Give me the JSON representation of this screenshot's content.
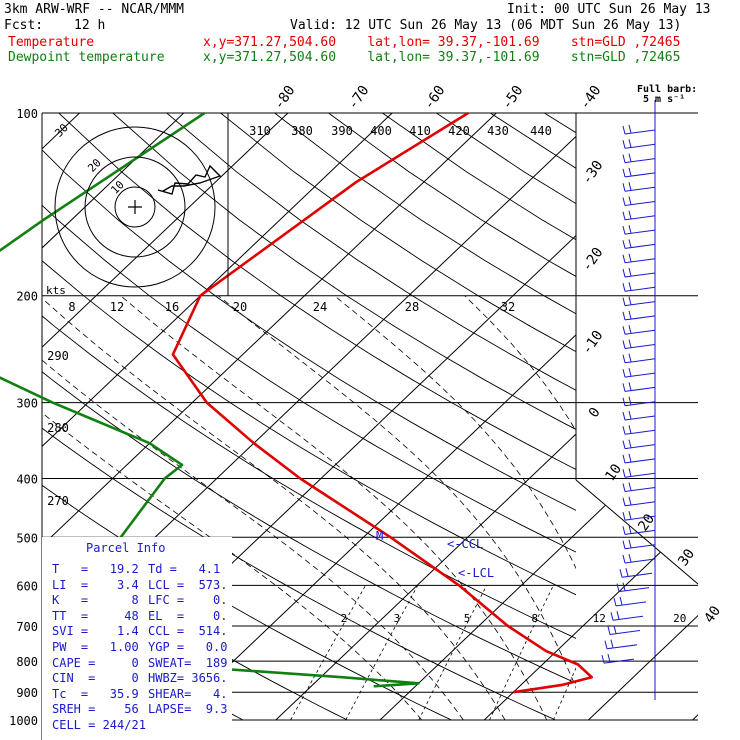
{
  "header": {
    "model": "3km ARW-WRF -- NCAR/MMM",
    "init": "Init: 00 UTC Sun 26 May 13",
    "fcst_label": "Fcst:",
    "fcst_value": "12 h",
    "valid": "Valid: 12 UTC Sun 26 May 13 (06 MDT Sun 26 May 13)",
    "temp_label": "Temperature",
    "dew_label": "Dewpoint temperature",
    "loc_temp": "x,y=371.27,504.60    lat,lon= 39.37,-101.69    stn=GLD ,72465",
    "loc_dew": "x,y=371.27,504.60    lat,lon= 39.37,-101.69    stn=GLD ,72465"
  },
  "colors": {
    "temperature": "#e00000",
    "dewpoint": "#108010",
    "wind_barb": "#1a1acc",
    "grid": "#000000",
    "ccl_label": "#1a1acc"
  },
  "barb_legend": {
    "title": "Full barb:",
    "value": "5 m s⁻¹"
  },
  "chart_data": {
    "type": "line",
    "title": "Skew-T log-P",
    "pressure_levels": [
      100,
      200,
      300,
      400,
      500,
      600,
      700,
      800,
      900,
      1000
    ],
    "skewed_temp_labels": [
      "-80",
      "-70",
      "-60",
      "-50",
      "-40",
      "-30",
      "-20",
      "-10",
      "0",
      "10",
      "20",
      "30",
      "40"
    ],
    "theta_labels": [
      "310",
      "380",
      "390",
      "400",
      "410",
      "420",
      "430",
      "440"
    ],
    "hodograph_speed_labels": [
      "8",
      "12",
      "16",
      "20",
      "24",
      "28",
      "32"
    ],
    "hodograph_speed_unit": "kts",
    "hodograph_ring_labels": [
      "10",
      "20",
      "30"
    ],
    "dry_adiabat_labels": [
      "290",
      "280",
      "270"
    ],
    "mixing_ratio_labels": [
      "2",
      "3",
      "5",
      "8",
      "12",
      "20"
    ],
    "series": [
      {
        "name": "Temperature",
        "points": [
          [
            100,
            -52.7
          ],
          [
            130,
            -56.5
          ],
          [
            200,
            -60.0
          ],
          [
            250,
            -56.7
          ],
          [
            300,
            -48.6
          ],
          [
            350,
            -40.0
          ],
          [
            400,
            -32.0
          ],
          [
            500,
            -17.4
          ],
          [
            600,
            -6.0
          ],
          [
            700,
            2.8
          ],
          [
            770,
            9.0
          ],
          [
            810,
            13.4
          ],
          [
            850,
            16.0
          ],
          [
            875,
            14.0
          ],
          [
            900,
            10.0
          ]
        ]
      },
      {
        "name": "Dewpoint",
        "points": [
          [
            100,
            -78.0
          ],
          [
            150,
            -82.7
          ],
          [
            200,
            -85.4
          ],
          [
            250,
            -78.0
          ],
          [
            300,
            -63.4
          ],
          [
            350,
            -50.0
          ],
          [
            380,
            -44.7
          ],
          [
            400,
            -45.0
          ],
          [
            500,
            -43.3
          ],
          [
            600,
            -36.5
          ],
          [
            700,
            -30.4
          ],
          [
            810,
            -26.8
          ],
          [
            850,
            -8.0
          ],
          [
            870,
            0.0
          ],
          [
            880,
            -4.0
          ]
        ]
      }
    ],
    "annotations": {
      "m_label": "M",
      "ccl_label": "<-CCL",
      "lcl_label": "<-LCL"
    }
  },
  "parcel": {
    "title": "Parcel Info",
    "rows": [
      {
        "left": "T   =   19.2",
        "right": "Td =   4.1"
      },
      {
        "left": "LI  =    3.4",
        "right": "LCL =  573."
      },
      {
        "left": "K   =      8",
        "right": "LFC =    0."
      },
      {
        "left": "TT  =     48",
        "right": "EL  =    0."
      },
      {
        "left": "SVI =    1.4",
        "right": "CCL =  514."
      },
      {
        "left": "PW  =   1.00",
        "right": "YGP =   0.0"
      },
      {
        "left": "CAPE =     0",
        "right": "SWEAT=  189"
      },
      {
        "left": "CIN  =     0",
        "right": "HWBZ= 3656."
      },
      {
        "left": "Tc  =   35.9",
        "right": "SHEAR=   4."
      },
      {
        "left": "SREH =    56",
        "right": "LAPSE=  9.3"
      },
      {
        "left": "CELL = 244/21",
        "right": ""
      }
    ]
  }
}
